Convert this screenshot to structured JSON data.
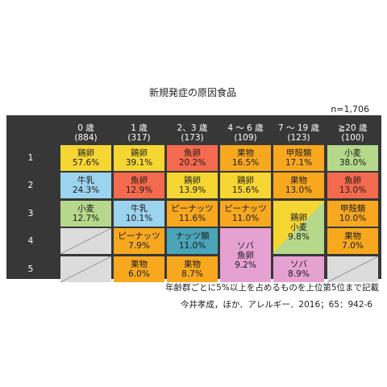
{
  "title": "新規発症の原因食品",
  "n_label": "n=1,706",
  "note": "年齢群ごとに5%以上を占めるものを上位第5位まで記載",
  "citation": "今井孝成，ほか．アレルギー．2016；65：942-6",
  "colors": {
    "鶏卵": "#f6d633",
    "牛乳": "#9cd3ef",
    "小麦": "#b5d88a",
    "魚卵": "#f46a4e",
    "ピーナッツ": "#f7a81f",
    "果物": "#f7a81f",
    "甲殻類": "#f7a81f",
    "ナッツ類": "#4aa5b8",
    "ソバ": "#e6a1d3",
    "empty": "#dcdcdc"
  },
  "chart_data": {
    "type": "table",
    "columns": [
      {
        "age": "0 歳",
        "n": "(884)"
      },
      {
        "age": "1 歳",
        "n": "(317)"
      },
      {
        "age": "2、3 歳",
        "n": "(173)"
      },
      {
        "age": "4 〜 6 歳",
        "n": "(109)"
      },
      {
        "age": "7 〜 19 歳",
        "n": "(123)"
      },
      {
        "age": "≧20 歳",
        "n": "(100)"
      }
    ],
    "rows": [
      "1",
      "2",
      "3",
      "4",
      "5"
    ],
    "cells": [
      [
        {
          "food": "鶏卵",
          "pct": "57.6%"
        },
        {
          "food": "牛乳",
          "pct": "24.3%"
        },
        {
          "food": "小麦",
          "pct": "12.7%"
        },
        null,
        null
      ],
      [
        {
          "food": "鶏卵",
          "pct": "39.1%"
        },
        {
          "food": "魚卵",
          "pct": "12.9%"
        },
        {
          "food": "牛乳",
          "pct": "10.1%"
        },
        {
          "food": "ピーナッツ",
          "pct": "7.9%"
        },
        {
          "food": "果物",
          "pct": "6.0%"
        }
      ],
      [
        {
          "food": "魚卵",
          "pct": "20.2%"
        },
        {
          "food": "鶏卵",
          "pct": "13.9%"
        },
        {
          "food": "ピーナッツ",
          "pct": "11.6%"
        },
        {
          "food": "ナッツ類",
          "pct": "11.0%"
        },
        {
          "food": "果物",
          "pct": "8.7%"
        }
      ],
      [
        {
          "food": "果物",
          "pct": "16.5%"
        },
        {
          "food": "鶏卵",
          "pct": "15.6%"
        },
        {
          "food": "ピーナッツ",
          "pct": "11.0%"
        },
        {
          "food": "ソバ 魚卵",
          "pct": "9.2%",
          "lines": [
            "ソバ",
            "魚卵",
            "9.2%"
          ]
        },
        null
      ],
      [
        {
          "food": "甲殻類",
          "pct": "17.1%"
        },
        {
          "food": "果物",
          "pct": "13.0%"
        },
        {
          "food": "鶏卵 小麦",
          "pct": "9.8%",
          "lines": [
            "鶏卵",
            "小麦",
            "9.8%"
          ]
        },
        null,
        {
          "food": "ソバ",
          "pct": "8.9%"
        }
      ],
      [
        {
          "food": "小麦",
          "pct": "38.0%"
        },
        {
          "food": "魚卵",
          "pct": "13.0%"
        },
        {
          "food": "甲殻類",
          "pct": "10.0%"
        },
        {
          "food": "果物",
          "pct": "7.0%"
        },
        null
      ]
    ]
  }
}
